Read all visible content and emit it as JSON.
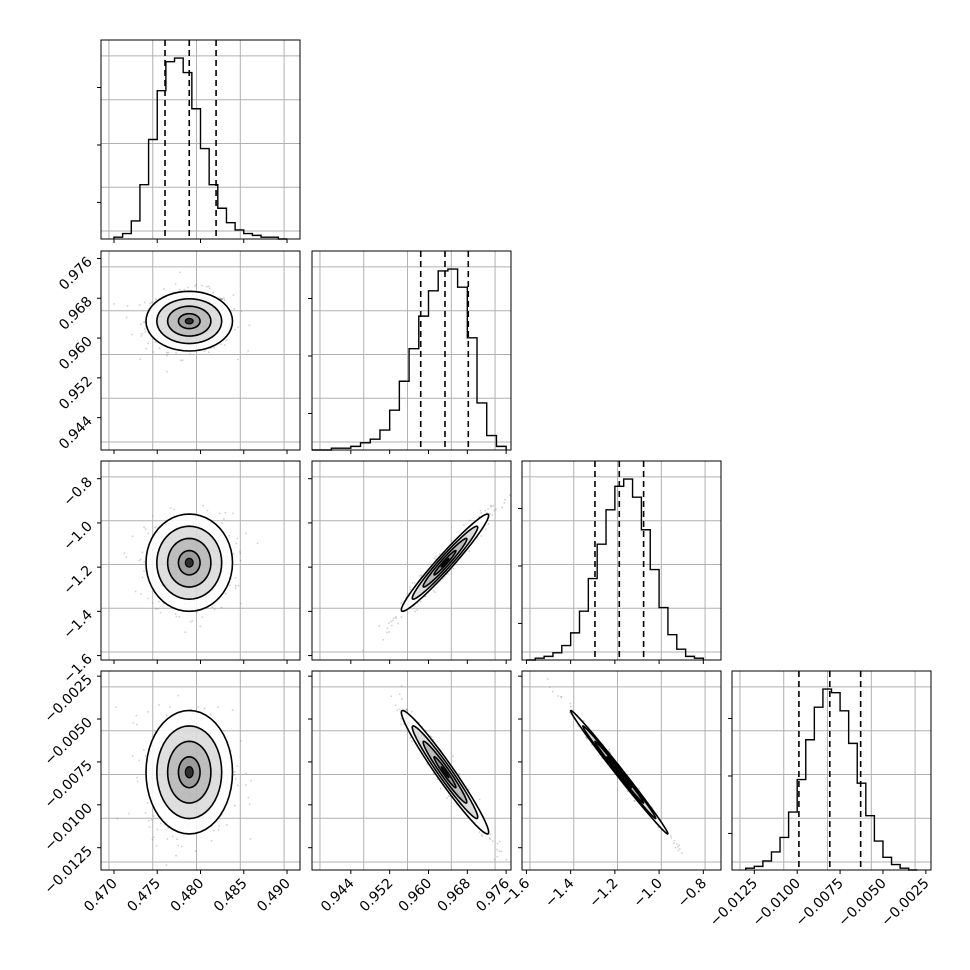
{
  "chart_data": [
    {
      "type": "histogram",
      "parameter_index": 0,
      "xlim": [
        0.4685,
        0.4915
      ],
      "ylim": [
        0,
        1.1
      ],
      "x_ticks": [
        0.47,
        0.475,
        0.48,
        0.485,
        0.49
      ],
      "x_tick_labels": [
        "0.470",
        "0.475",
        "0.480",
        "0.485",
        "0.490"
      ],
      "bin_edges": [
        0.47,
        0.471,
        0.472,
        0.473,
        0.474,
        0.475,
        0.476,
        0.477,
        0.478,
        0.479,
        0.48,
        0.481,
        0.482,
        0.483,
        0.484,
        0.485,
        0.486,
        0.487,
        0.488,
        0.489,
        0.49
      ],
      "counts": [
        0.01,
        0.03,
        0.1,
        0.3,
        0.55,
        0.82,
        0.98,
        1.0,
        0.92,
        0.72,
        0.5,
        0.3,
        0.17,
        0.09,
        0.05,
        0.03,
        0.02,
        0.01,
        0.01,
        0.0
      ],
      "quantiles": [
        0.4759,
        0.4787,
        0.4818
      ]
    },
    {
      "type": "histogram",
      "parameter_index": 1,
      "xlim": [
        0.936,
        0.977
      ],
      "ylim": [
        0,
        1.1
      ],
      "bin_edges": [
        0.936,
        0.938,
        0.94,
        0.942,
        0.944,
        0.946,
        0.948,
        0.95,
        0.952,
        0.954,
        0.956,
        0.958,
        0.96,
        0.962,
        0.964,
        0.966,
        0.968,
        0.97,
        0.972,
        0.974,
        0.976
      ],
      "counts": [
        0.0,
        0.0,
        0.01,
        0.01,
        0.02,
        0.04,
        0.06,
        0.11,
        0.22,
        0.38,
        0.56,
        0.74,
        0.88,
        0.99,
        1.0,
        0.9,
        0.62,
        0.26,
        0.08,
        0.02
      ],
      "quantiles": [
        0.9584,
        0.9634,
        0.9682
      ]
    },
    {
      "type": "histogram",
      "parameter_index": 2,
      "xlim": [
        -1.62,
        -0.72
      ],
      "ylim": [
        0,
        1.1
      ],
      "bin_edges": [
        -1.6,
        -1.56,
        -1.52,
        -1.48,
        -1.44,
        -1.4,
        -1.36,
        -1.32,
        -1.28,
        -1.24,
        -1.2,
        -1.16,
        -1.12,
        -1.08,
        -1.04,
        -1.0,
        -0.96,
        -0.92,
        -0.88,
        -0.84,
        -0.8
      ],
      "counts": [
        0.0,
        0.01,
        0.02,
        0.04,
        0.08,
        0.15,
        0.27,
        0.45,
        0.64,
        0.83,
        0.96,
        1.0,
        0.9,
        0.72,
        0.5,
        0.29,
        0.14,
        0.06,
        0.02,
        0.01
      ],
      "quantiles": [
        -1.29,
        -1.18,
        -1.07
      ]
    },
    {
      "type": "histogram",
      "parameter_index": 3,
      "xlim": [
        -0.0138,
        -0.0022
      ],
      "ylim": [
        0,
        1.1
      ],
      "x_ticks": [
        -0.0125,
        -0.01,
        -0.0075,
        -0.005,
        -0.0025
      ],
      "x_tick_labels": [
        "−0.0125",
        "−0.0100",
        "−0.0075",
        "−0.0050",
        "−0.0025"
      ],
      "bin_edges": [
        -0.013,
        -0.0125,
        -0.012,
        -0.0115,
        -0.011,
        -0.0105,
        -0.01,
        -0.0095,
        -0.009,
        -0.0085,
        -0.008,
        -0.0075,
        -0.007,
        -0.0065,
        -0.006,
        -0.0055,
        -0.005,
        -0.0045,
        -0.004,
        -0.0035,
        -0.003
      ],
      "counts": [
        0.01,
        0.02,
        0.05,
        0.1,
        0.18,
        0.32,
        0.5,
        0.72,
        0.9,
        1.0,
        0.98,
        0.88,
        0.7,
        0.48,
        0.3,
        0.16,
        0.07,
        0.03,
        0.01,
        0.0
      ],
      "quantiles": [
        -0.0099,
        -0.0081,
        -0.0063
      ]
    },
    {
      "type": "contour",
      "x_parameter": 0,
      "y_parameter": 1,
      "xlim": [
        0.4685,
        0.4915
      ],
      "ylim": [
        0.9375,
        0.9775
      ],
      "y_ticks": [
        0.944,
        0.952,
        0.96,
        0.968,
        0.976
      ],
      "y_tick_labels": [
        "0.944",
        "0.952",
        "0.960",
        "0.968",
        "0.976"
      ],
      "center": [
        0.4787,
        0.9634
      ],
      "sigma": [
        0.0025,
        0.003
      ],
      "correlation": 0.0
    },
    {
      "type": "contour",
      "x_parameter": 0,
      "y_parameter": 2,
      "xlim": [
        0.4685,
        0.4915
      ],
      "ylim": [
        -1.62,
        -0.72
      ],
      "y_ticks": [
        -1.6,
        -1.4,
        -1.2,
        -1.0,
        -0.8
      ],
      "y_tick_labels": [
        "−1.6",
        "−1.4",
        "−1.2",
        "−1.0",
        "−0.8"
      ],
      "center": [
        0.4787,
        -1.18
      ],
      "sigma": [
        0.0025,
        0.11
      ],
      "correlation": 0.0
    },
    {
      "type": "contour",
      "x_parameter": 1,
      "y_parameter": 2,
      "xlim": [
        0.936,
        0.977
      ],
      "ylim": [
        -1.62,
        -0.72
      ],
      "center": [
        0.9634,
        -1.18
      ],
      "sigma": [
        0.0045,
        0.11
      ],
      "correlation": 0.97
    },
    {
      "type": "contour",
      "x_parameter": 0,
      "y_parameter": 3,
      "xlim": [
        0.4685,
        0.4915
      ],
      "ylim": [
        -0.0138,
        -0.0022
      ],
      "y_ticks": [
        -0.0125,
        -0.01,
        -0.0075,
        -0.005,
        -0.0025
      ],
      "y_tick_labels": [
        "−0.0125",
        "−0.0100",
        "−0.0075",
        "−0.0050",
        "−0.0025"
      ],
      "center": [
        0.4787,
        -0.0081
      ],
      "sigma": [
        0.0025,
        0.0018
      ],
      "correlation": 0.0
    },
    {
      "type": "contour",
      "x_parameter": 1,
      "y_parameter": 3,
      "xlim": [
        0.936,
        0.977
      ],
      "ylim": [
        -0.0138,
        -0.0022
      ],
      "x_ticks": [
        0.944,
        0.952,
        0.96,
        0.968,
        0.976
      ],
      "x_tick_labels": [
        "0.944",
        "0.952",
        "0.960",
        "0.968",
        "0.976"
      ],
      "center": [
        0.9634,
        -0.0081
      ],
      "sigma": [
        0.0045,
        0.0018
      ],
      "correlation": -0.97
    },
    {
      "type": "contour",
      "x_parameter": 2,
      "y_parameter": 3,
      "xlim": [
        -1.62,
        -0.72
      ],
      "ylim": [
        -0.0138,
        -0.0022
      ],
      "x_ticks": [
        -1.6,
        -1.4,
        -1.2,
        -1.0,
        -0.8
      ],
      "x_tick_labels": [
        "−1.6",
        "−1.4",
        "−1.2",
        "−1.0",
        "−0.8"
      ],
      "center": [
        -1.18,
        -0.0081
      ],
      "sigma": [
        0.11,
        0.0018
      ],
      "correlation": -0.995
    }
  ],
  "style": {
    "line_color": "#000000",
    "grid_color": "#b0b0b0",
    "point_color": "#777777",
    "fill_color": "#808080"
  }
}
